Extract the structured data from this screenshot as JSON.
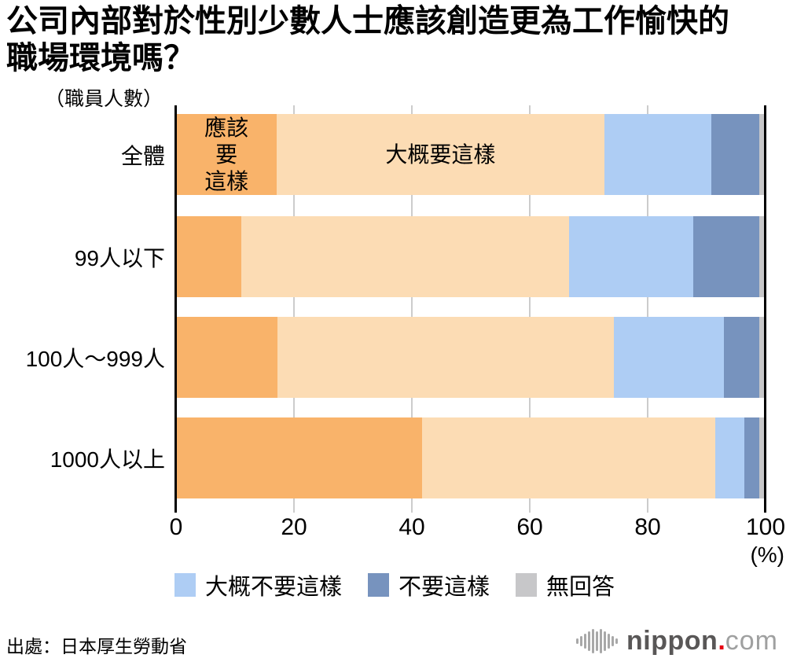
{
  "title": {
    "line1": "公司內部對於性別少數人士應該創造更為工作愉快的",
    "line2": "職場環境嗎？"
  },
  "chart_data": {
    "type": "bar",
    "orientation": "horizontal",
    "stacked": true,
    "unit_label": "（職員人數）",
    "categories": [
      "全體",
      "99人以下",
      "100人〜999人",
      "1000人以上"
    ],
    "series": [
      {
        "name": "應該要這樣",
        "color": "#F9B36A",
        "values": [
          17.1,
          11.1,
          17.2,
          41.7
        ]
      },
      {
        "name": "大概要這樣",
        "color": "#FCDCB4",
        "values": [
          55.5,
          55.6,
          57.1,
          49.8
        ]
      },
      {
        "name": "大概不要這樣",
        "color": "#AECDF4",
        "values": [
          18.2,
          21.0,
          18.6,
          4.9
        ]
      },
      {
        "name": "不要這樣",
        "color": "#7793BE",
        "values": [
          8.1,
          11.2,
          6.0,
          2.5
        ]
      },
      {
        "name": "無回答",
        "color": "#C7C7C9",
        "values": [
          1.1,
          1.1,
          1.1,
          1.1
        ]
      }
    ],
    "annotations": [
      {
        "row": 0,
        "series": 0,
        "text": "應該要\n這樣"
      },
      {
        "row": 0,
        "series": 1,
        "text": "大概要這樣"
      }
    ],
    "x_axis": {
      "range": [
        0,
        100
      ],
      "ticks": [
        0,
        20,
        40,
        60,
        80,
        100
      ],
      "gridlines": [
        20,
        40,
        60,
        80
      ],
      "unit": "(%)"
    },
    "legend": [
      {
        "label": "大概不要這樣",
        "color": "#AECDF4"
      },
      {
        "label": "不要這樣",
        "color": "#7793BE"
      },
      {
        "label": "無回答",
        "color": "#C7C7C9"
      }
    ]
  },
  "source": "出處：日本厚生勞動省",
  "logo": {
    "brand": "nippon",
    "dot": ".",
    "tld": "com",
    "brand_color": "#595757",
    "dot_color": "#e60012",
    "tld_color": "#9fa0a0"
  }
}
